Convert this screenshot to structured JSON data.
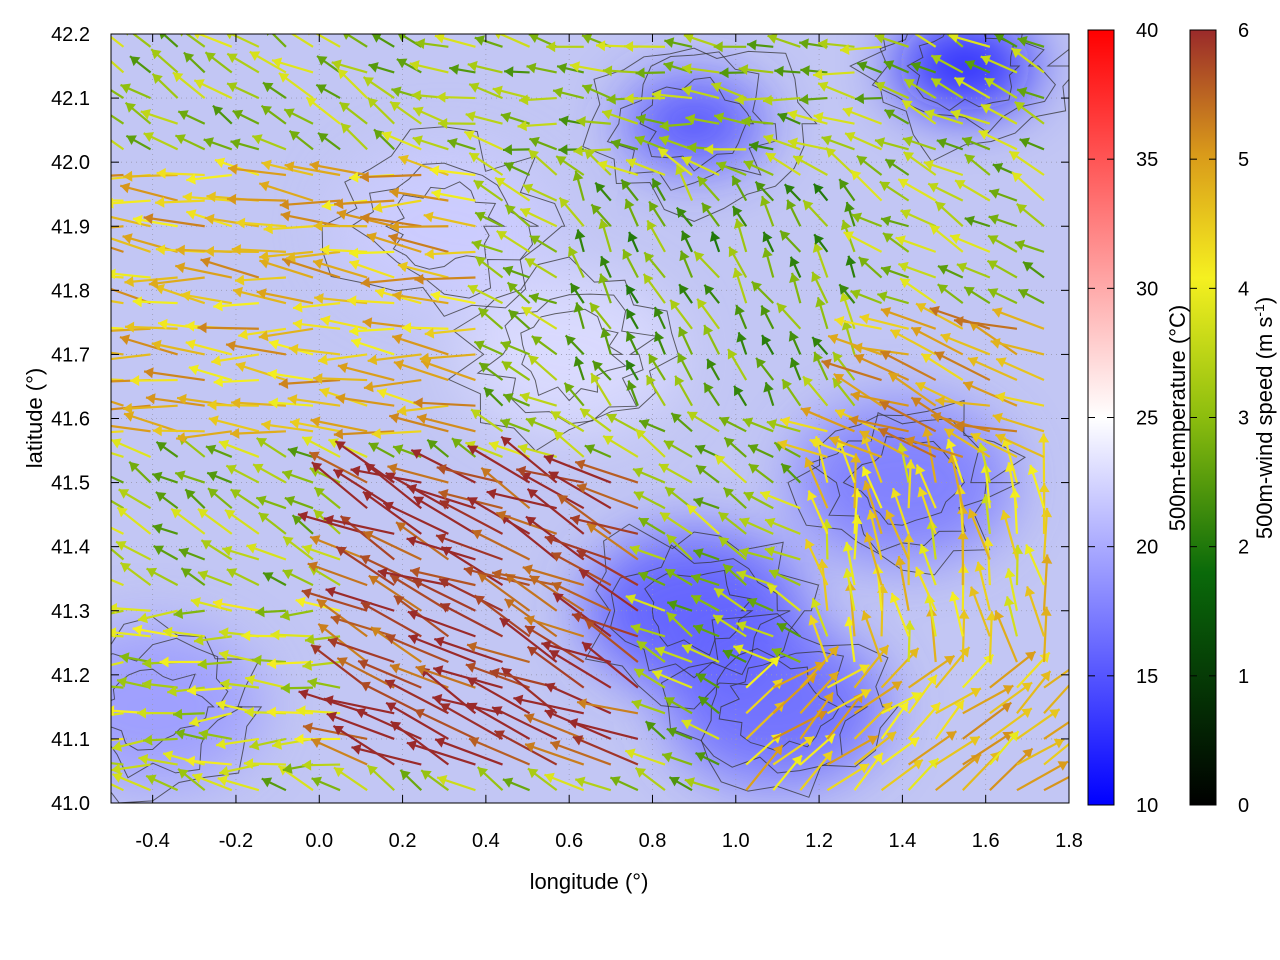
{
  "chart_data": {
    "type": "heatmap",
    "overlays": [
      "vector-field",
      "contour"
    ],
    "xlabel": "longitude (°)",
    "ylabel": "latitude (°)",
    "xlim": [
      -0.5,
      1.8
    ],
    "ylim": [
      41.0,
      42.2
    ],
    "xticks": [
      "-0.4",
      "-0.2",
      "0.0",
      "0.2",
      "0.4",
      "0.6",
      "0.8",
      "1.0",
      "1.2",
      "1.4",
      "1.6",
      "1.8"
    ],
    "yticks": [
      "41.0",
      "41.1",
      "41.2",
      "41.3",
      "41.4",
      "41.5",
      "41.6",
      "41.7",
      "41.8",
      "41.9",
      "42.0",
      "42.1",
      "42.2"
    ],
    "grid": true,
    "colorbars": [
      {
        "label": "500m-temperature (°C)",
        "range": [
          10,
          40
        ],
        "ticks": [
          "10",
          "15",
          "20",
          "25",
          "30",
          "35",
          "40"
        ],
        "colors": [
          "#0000ff",
          "#ffffff",
          "#ff0000"
        ]
      },
      {
        "label_main": "500m-wind speed (m s",
        "label_sup": "-1",
        "label_end": ")",
        "range": [
          0,
          6
        ],
        "ticks": [
          "0",
          "1",
          "2",
          "3",
          "4",
          "5",
          "6"
        ],
        "colors": [
          "#000000",
          "#0a6a0a",
          "#8cbd0e",
          "#f5f020",
          "#d99a1a",
          "#9a2a2a"
        ]
      }
    ],
    "temperature_centers": [
      {
        "lon": 1.55,
        "lat": 42.15,
        "value": 11
      },
      {
        "lon": 0.9,
        "lat": 42.06,
        "value": 14
      },
      {
        "lon": 0.9,
        "lat": 41.3,
        "value": 15
      },
      {
        "lon": 1.1,
        "lat": 41.15,
        "value": 16
      },
      {
        "lon": 1.4,
        "lat": 41.5,
        "value": 17
      },
      {
        "lon": -0.4,
        "lat": 41.15,
        "value": 19
      },
      {
        "lon": 0.6,
        "lat": 41.7,
        "value": 23
      },
      {
        "lon": 0.3,
        "lat": 41.9,
        "value": 22
      }
    ],
    "wind_regions": [
      {
        "lon_range": [
          -0.5,
          0.4
        ],
        "lat_range": [
          41.55,
          42.0
        ],
        "direction_deg": 175,
        "speed": 4.3
      },
      {
        "lon_range": [
          0.1,
          0.8
        ],
        "lat_range": [
          41.05,
          41.5
        ],
        "direction_deg": 155,
        "speed": 5.8
      },
      {
        "lon_range": [
          -0.5,
          0.2
        ],
        "lat_range": [
          41.05,
          41.3
        ],
        "direction_deg": 180,
        "speed": 3.0
      },
      {
        "lon_range": [
          0.6,
          1.3
        ],
        "lat_range": [
          41.6,
          41.95
        ],
        "direction_deg": 120,
        "speed": 2.2
      },
      {
        "lon_range": [
          1.2,
          1.8
        ],
        "lat_range": [
          41.5,
          41.75
        ],
        "direction_deg": 160,
        "speed": 4.5
      },
      {
        "lon_range": [
          1.2,
          1.8
        ],
        "lat_range": [
          41.2,
          41.5
        ],
        "direction_deg": 100,
        "speed": 3.8
      },
      {
        "lon_range": [
          1.0,
          1.8
        ],
        "lat_range": [
          41.0,
          41.2
        ],
        "direction_deg": 40,
        "speed": 4.2
      },
      {
        "lon_range": [
          0.3,
          1.4
        ],
        "lat_range": [
          42.0,
          42.2
        ],
        "direction_deg": 170,
        "speed": 2.5
      }
    ]
  }
}
